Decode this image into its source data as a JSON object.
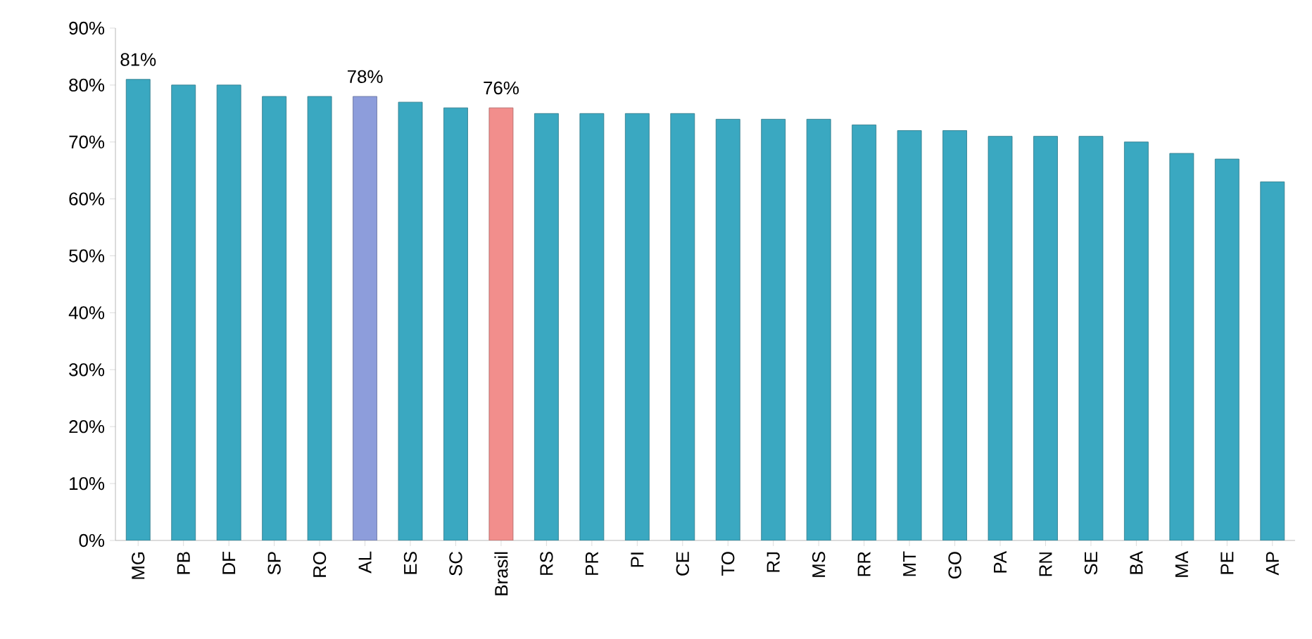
{
  "chart_data": {
    "type": "bar",
    "categories": [
      "MG",
      "PB",
      "DF",
      "SP",
      "RO",
      "AL",
      "ES",
      "SC",
      "Brasil",
      "RS",
      "PR",
      "PI",
      "CE",
      "TO",
      "RJ",
      "MS",
      "RR",
      "MT",
      "GO",
      "PA",
      "RN",
      "SE",
      "BA",
      "MA",
      "PE",
      "AP"
    ],
    "values": [
      81,
      80,
      80,
      78,
      78,
      78,
      77,
      76,
      76,
      75,
      75,
      75,
      75,
      74,
      74,
      74,
      73,
      72,
      72,
      71,
      71,
      71,
      70,
      68,
      67,
      63
    ],
    "colors": [
      "#3aa8c1",
      "#3aa8c1",
      "#3aa8c1",
      "#3aa8c1",
      "#3aa8c1",
      "#8d9ddb",
      "#3aa8c1",
      "#3aa8c1",
      "#f28e8c",
      "#3aa8c1",
      "#3aa8c1",
      "#3aa8c1",
      "#3aa8c1",
      "#3aa8c1",
      "#3aa8c1",
      "#3aa8c1",
      "#3aa8c1",
      "#3aa8c1",
      "#3aa8c1",
      "#3aa8c1",
      "#3aa8c1",
      "#3aa8c1",
      "#3aa8c1",
      "#3aa8c1",
      "#3aa8c1",
      "#3aa8c1"
    ],
    "value_labels": [
      "81%",
      null,
      null,
      null,
      null,
      "78%",
      null,
      null,
      "76%",
      null,
      null,
      null,
      null,
      null,
      null,
      null,
      null,
      null,
      null,
      null,
      null,
      null,
      null,
      null,
      null,
      null
    ],
    "yticks": [
      {
        "value": 0,
        "label": "0%"
      },
      {
        "value": 10,
        "label": "10%"
      },
      {
        "value": 20,
        "label": "20%"
      },
      {
        "value": 30,
        "label": "30%"
      },
      {
        "value": 40,
        "label": "40%"
      },
      {
        "value": 50,
        "label": "50%"
      },
      {
        "value": 60,
        "label": "60%"
      },
      {
        "value": 70,
        "label": "70%"
      },
      {
        "value": 80,
        "label": "80%"
      },
      {
        "value": 90,
        "label": "90%"
      }
    ],
    "ylim": [
      0,
      90
    ]
  }
}
